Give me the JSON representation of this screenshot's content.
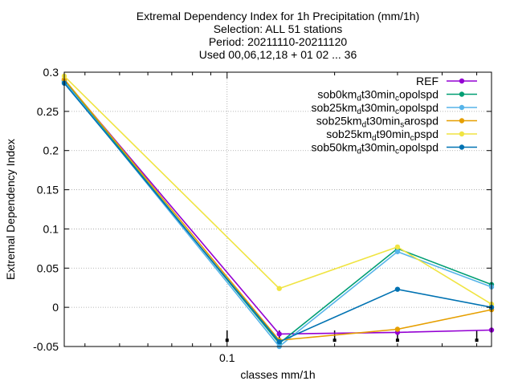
{
  "chart_data": {
    "type": "line",
    "title_lines": [
      "Extremal Dependency Index  for 1h Precipitation (mm/1h)",
      "Selection: ALL      51 stations",
      "Period: 20211110-20211120",
      "Used 00,06,12,18 + 01 02 ... 36"
    ],
    "xlabel": "classes mm/1h",
    "ylabel": "Extremal Dependency Index",
    "x_scale": "log",
    "xlim": [
      0.035,
      0.55
    ],
    "ylim": [
      -0.05,
      0.3
    ],
    "x_tick_labels": [
      {
        "value": 0.1,
        "label": "0.1"
      }
    ],
    "y_ticks": [
      {
        "value": 0.3,
        "label": "0.3"
      },
      {
        "value": 0.25,
        "label": "0.25"
      },
      {
        "value": 0.2,
        "label": "0.2"
      },
      {
        "value": 0.15,
        "label": "0.15"
      },
      {
        "value": 0.1,
        "label": "0.1"
      },
      {
        "value": 0.05,
        "label": "0.05"
      },
      {
        "value": 0,
        "label": "0"
      },
      {
        "value": -0.05,
        "label": "-0.05"
      }
    ],
    "x": [
      0.035,
      0.14,
      0.3,
      0.55
    ],
    "grid": true,
    "legend_position": "top-right",
    "error_bar_x": [
      0.1,
      0.14,
      0.2,
      0.3,
      0.5
    ],
    "series": [
      {
        "name": "REF",
        "name_parts": [
          {
            "t": "REF",
            "sub": false
          }
        ],
        "color": "#9400d3",
        "values": [
          0.29,
          -0.034,
          -0.032,
          -0.029
        ]
      },
      {
        "name": "sob0km_dt30min_copolspd",
        "name_parts": [
          {
            "t": "sob0km",
            "sub": false
          },
          {
            "t": "d",
            "sub": true
          },
          {
            "t": "t30min",
            "sub": false
          },
          {
            "t": "c",
            "sub": true
          },
          {
            "t": "opolspd",
            "sub": false
          }
        ],
        "color": "#009e73",
        "values": [
          0.289,
          -0.046,
          0.075,
          0.029
        ]
      },
      {
        "name": "sob25km_dt30min_copolspd",
        "name_parts": [
          {
            "t": "sob25km",
            "sub": false
          },
          {
            "t": "d",
            "sub": true
          },
          {
            "t": "t30min",
            "sub": false
          },
          {
            "t": "c",
            "sub": true
          },
          {
            "t": "opolspd",
            "sub": false
          }
        ],
        "color": "#56b4e9",
        "values": [
          0.288,
          -0.05,
          0.071,
          0.026
        ]
      },
      {
        "name": "sob25km_dt30min_sarospd",
        "name_parts": [
          {
            "t": "sob25km",
            "sub": false
          },
          {
            "t": "d",
            "sub": true
          },
          {
            "t": "t30min",
            "sub": false
          },
          {
            "t": "s",
            "sub": true
          },
          {
            "t": "arospd",
            "sub": false
          }
        ],
        "color": "#e69f00",
        "values": [
          0.291,
          -0.042,
          -0.028,
          -0.003
        ]
      },
      {
        "name": "sob25km_dt90min_cpspd",
        "name_parts": [
          {
            "t": "sob25km",
            "sub": false
          },
          {
            "t": "d",
            "sub": true
          },
          {
            "t": "t90min",
            "sub": false
          },
          {
            "t": "c",
            "sub": true
          },
          {
            "t": "pspd",
            "sub": false
          }
        ],
        "color": "#f0e442",
        "values": [
          0.295,
          0.024,
          0.077,
          0.004
        ]
      },
      {
        "name": "sob50km_dt30min_copolspd",
        "name_parts": [
          {
            "t": "sob50km",
            "sub": false
          },
          {
            "t": "d",
            "sub": true
          },
          {
            "t": "t30min",
            "sub": false
          },
          {
            "t": "c",
            "sub": true
          },
          {
            "t": "opolspd",
            "sub": false
          }
        ],
        "color": "#0072b2",
        "values": [
          0.286,
          -0.044,
          0.023,
          0.0
        ]
      }
    ]
  }
}
